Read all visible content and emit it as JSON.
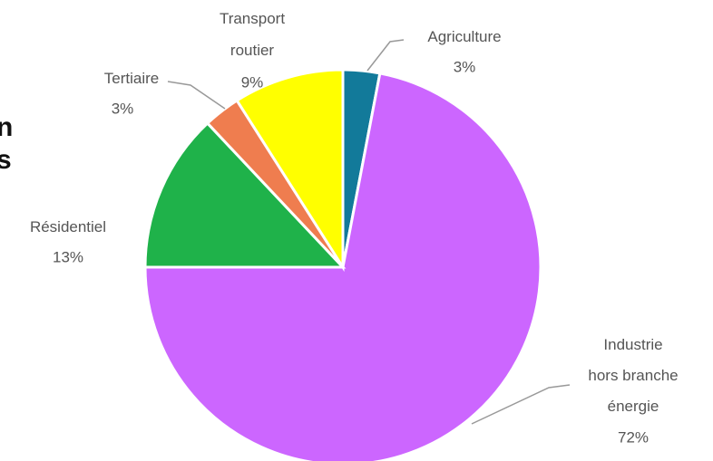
{
  "chart_data": {
    "type": "pie",
    "fragments": [
      "n",
      "s"
    ],
    "categories": [
      "Agriculture",
      "Industrie hors branche énergie",
      "Résidentiel",
      "Tertiaire",
      "Transport routier"
    ],
    "values": [
      3,
      72,
      13,
      3,
      9
    ],
    "value_labels": [
      "3%",
      "72%",
      "13%",
      "3%",
      "9%"
    ],
    "colors": [
      "#127a9a",
      "#cc66ff",
      "#1fb24a",
      "#ef7d4f",
      "#ffff00"
    ]
  }
}
